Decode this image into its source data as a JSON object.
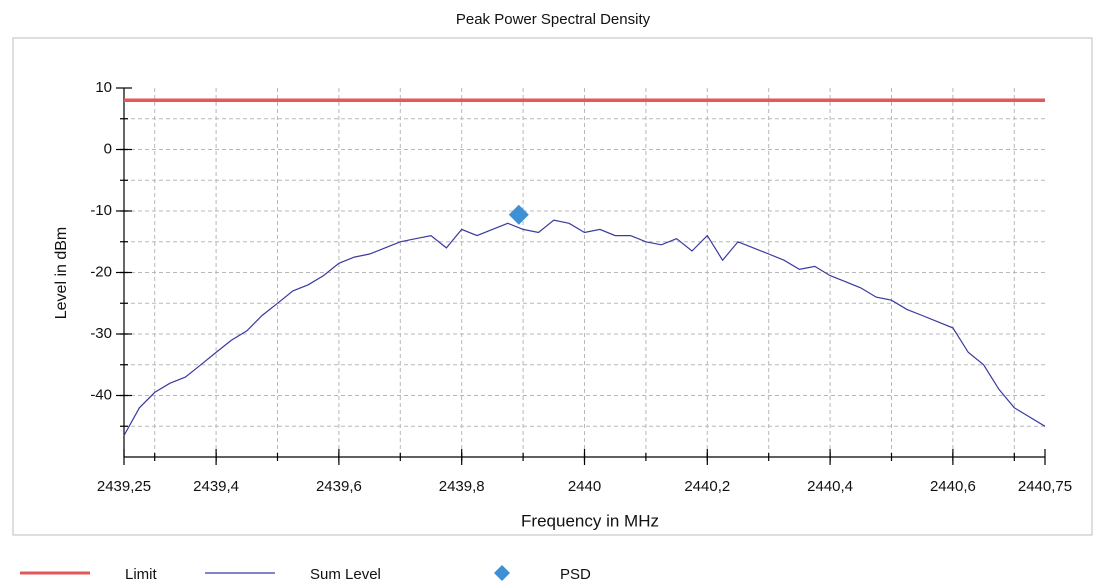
{
  "chart_data": {
    "type": "line",
    "title": "Peak Power Spectral Density",
    "xlabel": "Frequency in MHz",
    "ylabel": "Level in dBm",
    "xlim": [
      2439.25,
      2440.75
    ],
    "ylim": [
      -50,
      10
    ],
    "xticks": [
      {
        "value": 2439.25,
        "label": "2439,25"
      },
      {
        "value": 2439.4,
        "label": "2439,4"
      },
      {
        "value": 2439.6,
        "label": "2439,6"
      },
      {
        "value": 2439.8,
        "label": "2439,8"
      },
      2440,
      {
        "value": 2440.2,
        "label": "2440,2"
      },
      {
        "value": 2440.4,
        "label": "2440,4"
      },
      {
        "value": 2440.6,
        "label": "2440,6"
      },
      {
        "value": 2440.75,
        "label": "2440,75"
      }
    ],
    "yticks": [
      10,
      0,
      -10,
      -20,
      -30,
      -40
    ],
    "xgrid": [
      2439.3,
      2439.4,
      2439.5,
      2439.6,
      2439.7,
      2439.8,
      2439.9,
      2440,
      2440.1,
      2440.2,
      2440.3,
      2440.4,
      2440.5,
      2440.6,
      2440.7
    ],
    "ygrid": [
      5,
      0,
      -5,
      -10,
      -15,
      -20,
      -25,
      -30,
      -35,
      -40,
      -45
    ],
    "grid": true,
    "series": [
      {
        "name": "Limit",
        "color": "#e05a5a",
        "x": [
          2439.25,
          2440.75
        ],
        "values": [
          8,
          8
        ]
      },
      {
        "name": "Sum Level",
        "color": "#3a3aa0",
        "x": [
          2439.25,
          2439.275,
          2439.3,
          2439.325,
          2439.35,
          2439.375,
          2439.4,
          2439.425,
          2439.45,
          2439.475,
          2439.5,
          2439.525,
          2439.55,
          2439.575,
          2439.6,
          2439.625,
          2439.65,
          2439.675,
          2439.7,
          2439.725,
          2439.75,
          2439.775,
          2439.8,
          2439.825,
          2439.85,
          2439.875,
          2439.9,
          2439.925,
          2439.95,
          2439.975,
          2440,
          2440.025,
          2440.05,
          2440.075,
          2440.1,
          2440.125,
          2440.15,
          2440.175,
          2440.2,
          2440.225,
          2440.25,
          2440.275,
          2440.3,
          2440.325,
          2440.35,
          2440.375,
          2440.4,
          2440.425,
          2440.45,
          2440.475,
          2440.5,
          2440.525,
          2440.55,
          2440.575,
          2440.6,
          2440.625,
          2440.65,
          2440.675,
          2440.7,
          2440.725,
          2440.75
        ],
        "values": [
          -46.5,
          -42,
          -39.5,
          -38,
          -37,
          -35,
          -33,
          -31,
          -29.5,
          -27,
          -25,
          -23,
          -22,
          -20.5,
          -18.5,
          -17.5,
          -17,
          -16,
          -15,
          -14.5,
          -14,
          -16,
          -13,
          -14,
          -13,
          -12,
          -13,
          -13.5,
          -11.5,
          -12,
          -13.5,
          -13,
          -14,
          -14,
          -15,
          -15.5,
          -14.5,
          -16.5,
          -14,
          -18,
          -15,
          -16,
          -17,
          -18,
          -19.5,
          -19,
          -20.5,
          -21.5,
          -22.5,
          -24,
          -24.5,
          -26,
          -27,
          -28,
          -29,
          -33,
          -35,
          -39,
          -42,
          -43.5,
          -45
        ]
      },
      {
        "name": "PSD",
        "color": "#3d8fd6",
        "x": [
          2439.893
        ],
        "values": [
          -10.6
        ]
      }
    ]
  }
}
